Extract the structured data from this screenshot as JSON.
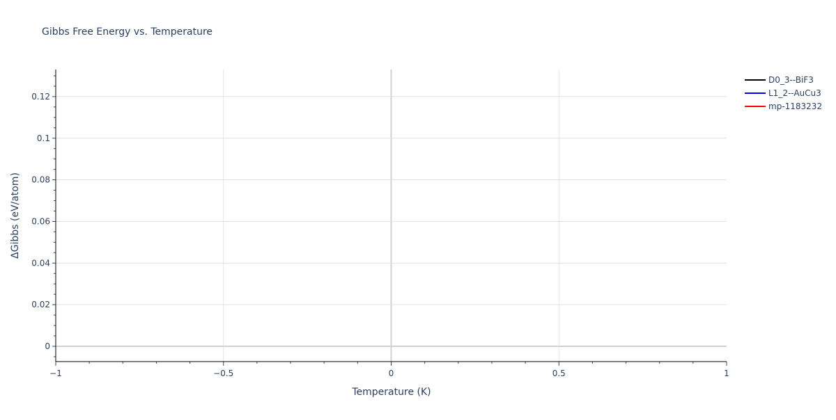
{
  "chart_data": {
    "type": "line",
    "title": "Gibbs Free Energy vs. Temperature",
    "xlabel": "Temperature (K)",
    "ylabel": "ΔGibbs (eV/atom)",
    "xlim": [
      -1,
      1
    ],
    "ylim": [
      -0.00735,
      0.133
    ],
    "x_ticks": [
      -1,
      -0.5,
      0,
      0.5,
      1
    ],
    "x_tick_labels": [
      "−1",
      "−0.5",
      "0",
      "0.5",
      "1"
    ],
    "y_ticks": [
      0,
      0.02,
      0.04,
      0.06,
      0.08,
      0.1,
      0.12
    ],
    "y_tick_labels": [
      "0",
      "0.02",
      "0.04",
      "0.06",
      "0.08",
      "0.1",
      "0.12"
    ],
    "grid": true,
    "legend_position": "top-right",
    "series": [
      {
        "name": "D0_3--BiF3",
        "color": "#000000",
        "x": [],
        "y": []
      },
      {
        "name": "L1_2--AuCu3",
        "color": "#0000ff",
        "x": [],
        "y": []
      },
      {
        "name": "mp-1183232",
        "color": "#ff0000",
        "x": [],
        "y": []
      }
    ]
  }
}
